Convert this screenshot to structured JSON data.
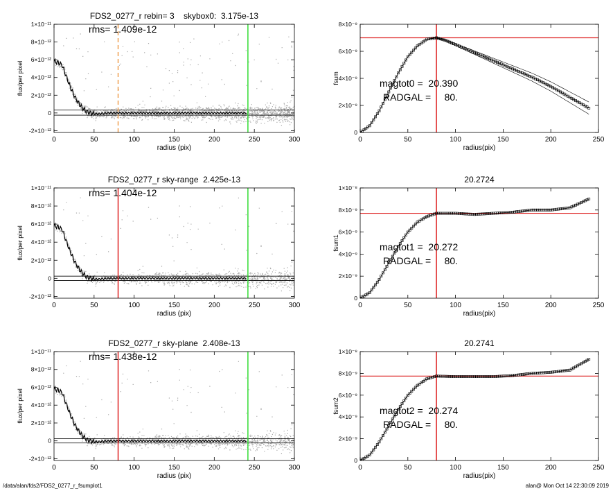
{
  "footer": {
    "left": "/data/alan/fds2/FDS2_0277_r_fsumplot1",
    "right": "alan@  Mon Oct 14 22:30:09 2019"
  },
  "colors": {
    "scatter": "#a8a8a8",
    "profile": "#000000",
    "marker_red": "#dd1f1f",
    "marker_orange": "#f0a050",
    "marker_green": "#33dd33"
  },
  "chart_data": [
    {
      "type": "scatter",
      "title": "FDS2_0277_r rebin= 3    skybox0:  3.175e-13",
      "annotation": "rms= 1.409e-12",
      "xlabel": "radius (pix)",
      "ylabel": "flux/per pixel",
      "xlim": [
        0,
        300
      ],
      "ylim": [
        -2.2e-12,
        1e-11
      ],
      "xticks": [
        0,
        50,
        100,
        150,
        200,
        250,
        300
      ],
      "xtick_labels": [
        "0",
        "50",
        "100",
        "150",
        "200",
        "250",
        "300"
      ],
      "yticks": [
        -2e-12,
        0,
        2e-12,
        4e-12,
        6e-12,
        8e-12,
        1e-11
      ],
      "ytick_labels": [
        "-2×10⁻¹²",
        "0",
        "2×10⁻¹²",
        "4×10⁻¹²",
        "6×10⁻¹²",
        "8×10⁻¹²",
        "1×10⁻¹¹"
      ],
      "hlines": [
        3.2e-13,
        -2.5e-13
      ],
      "vlines": [
        {
          "x": 80,
          "color": "orange",
          "dashed": true
        },
        {
          "x": 242,
          "color": "green"
        }
      ],
      "profile": {
        "x": [
          0,
          5,
          10,
          15,
          20,
          25,
          30,
          35,
          40,
          45,
          50,
          55,
          60,
          70,
          80,
          100,
          150,
          200,
          240
        ],
        "y": [
          5.8e-12,
          5.7e-12,
          5.4e-12,
          4.2e-12,
          3e-12,
          2e-12,
          1.2e-12,
          6e-13,
          2e-13,
          0,
          -1e-13,
          -1e-13,
          -5e-14,
          0,
          0,
          0,
          0,
          0,
          0
        ]
      }
    },
    {
      "type": "line",
      "title": "",
      "xlabel": "radius(pix)",
      "ylabel": "fsum",
      "annotations": [
        "magtot0 =  20.390",
        "RADGAL =     80."
      ],
      "xlim": [
        0,
        250
      ],
      "ylim": [
        0,
        8e-09
      ],
      "xticks": [
        0,
        50,
        100,
        150,
        200,
        250
      ],
      "xtick_labels": [
        "0",
        "50",
        "100",
        "150",
        "200",
        "250"
      ],
      "yticks": [
        0,
        2e-09,
        4e-09,
        6e-09,
        8e-09
      ],
      "ytick_labels": [
        "0",
        "2×10⁻⁹",
        "4×10⁻⁹",
        "6×10⁻⁹",
        "8×10⁻⁹"
      ],
      "hline": 7e-09,
      "vline": 80,
      "series": {
        "x": [
          0,
          10,
          20,
          30,
          40,
          50,
          60,
          70,
          80,
          90,
          100,
          120,
          140,
          160,
          180,
          200,
          220,
          240
        ],
        "y": [
          0,
          5e-10,
          1.6e-09,
          3e-09,
          4.4e-09,
          5.6e-09,
          6.4e-09,
          6.9e-09,
          7e-09,
          6.8e-09,
          6.5e-09,
          5.9e-09,
          5.3e-09,
          4.7e-09,
          4.1e-09,
          3.4e-09,
          2.6e-09,
          1.8e-09
        ]
      }
    },
    {
      "type": "scatter",
      "title": "FDS2_0277_r sky-range  2.425e-13",
      "annotation": "rms= 1.404e-12",
      "xlabel": "radius (pix)",
      "ylabel": "flux/per pixel",
      "xlim": [
        0,
        300
      ],
      "ylim": [
        -2.2e-12,
        1e-11
      ],
      "xticks": [
        0,
        50,
        100,
        150,
        200,
        250,
        300
      ],
      "xtick_labels": [
        "0",
        "50",
        "100",
        "150",
        "200",
        "250",
        "300"
      ],
      "yticks": [
        -2e-12,
        0,
        2e-12,
        4e-12,
        6e-12,
        8e-12,
        1e-11
      ],
      "ytick_labels": [
        "-2×10⁻¹²",
        "0",
        "2×10⁻¹²",
        "4×10⁻¹²",
        "6×10⁻¹²",
        "8×10⁻¹²",
        "1×10⁻¹¹"
      ],
      "hlines": [
        2.4e-13,
        -2.4e-13
      ],
      "vlines": [
        {
          "x": 80,
          "color": "red"
        },
        {
          "x": 242,
          "color": "green"
        }
      ],
      "profile": {
        "x": [
          0,
          5,
          10,
          15,
          20,
          25,
          30,
          35,
          40,
          45,
          50,
          55,
          60,
          70,
          80,
          100,
          150,
          200,
          240
        ],
        "y": [
          5.8e-12,
          5.7e-12,
          5.4e-12,
          4.2e-12,
          3e-12,
          2e-12,
          1.2e-12,
          6e-13,
          2e-13,
          0,
          -1e-13,
          -1e-13,
          -5e-14,
          0,
          0,
          0,
          0,
          0,
          0
        ]
      }
    },
    {
      "type": "line",
      "title": "20.2724",
      "xlabel": "radius(pix)",
      "ylabel": "fsum1",
      "annotations": [
        "magtot1 =  20.272",
        "RADGAL =     80."
      ],
      "xlim": [
        0,
        250
      ],
      "ylim": [
        0,
        1e-08
      ],
      "xticks": [
        0,
        50,
        100,
        150,
        200,
        250
      ],
      "xtick_labels": [
        "0",
        "50",
        "100",
        "150",
        "200",
        "250"
      ],
      "yticks": [
        0,
        2e-09,
        4e-09,
        6e-09,
        8e-09,
        1e-08
      ],
      "ytick_labels": [
        "0",
        "2×10⁻⁹",
        "4×10⁻⁹",
        "6×10⁻⁹",
        "8×10⁻⁹",
        "1×10⁻⁸"
      ],
      "hline": 7.7e-09,
      "vline": 80,
      "series": {
        "x": [
          0,
          10,
          20,
          30,
          40,
          50,
          60,
          70,
          80,
          100,
          120,
          140,
          160,
          180,
          200,
          220,
          230,
          240
        ],
        "y": [
          0,
          5e-10,
          1.7e-09,
          3.2e-09,
          4.7e-09,
          6e-09,
          6.9e-09,
          7.4e-09,
          7.7e-09,
          7.7e-09,
          7.6e-09,
          7.7e-09,
          7.8e-09,
          8e-09,
          8e-09,
          8.2e-09,
          8.6e-09,
          9e-09
        ]
      }
    },
    {
      "type": "scatter",
      "title": "FDS2_0277_r sky-plane  2.408e-13",
      "annotation": "rms= 1.438e-12",
      "xlabel": "radius (pix)",
      "ylabel": "flux/per pixel",
      "xlim": [
        0,
        300
      ],
      "ylim": [
        -2.2e-12,
        1e-11
      ],
      "xticks": [
        0,
        50,
        100,
        150,
        200,
        250,
        300
      ],
      "xtick_labels": [
        "0",
        "50",
        "100",
        "150",
        "200",
        "250",
        "300"
      ],
      "yticks": [
        -2e-12,
        0,
        2e-12,
        4e-12,
        6e-12,
        8e-12,
        1e-11
      ],
      "ytick_labels": [
        "-2×10⁻¹²",
        "0",
        "2×10⁻¹²",
        "4×10⁻¹²",
        "6×10⁻¹²",
        "8×10⁻¹²",
        "1×10⁻¹¹"
      ],
      "hlines": [
        2.4e-13,
        -2.4e-13
      ],
      "vlines": [
        {
          "x": 80,
          "color": "red"
        },
        {
          "x": 242,
          "color": "green"
        }
      ],
      "profile": {
        "x": [
          0,
          5,
          10,
          15,
          20,
          25,
          30,
          35,
          40,
          45,
          50,
          55,
          60,
          70,
          80,
          100,
          150,
          200,
          240
        ],
        "y": [
          5.8e-12,
          5.7e-12,
          5.4e-12,
          4.2e-12,
          3e-12,
          2e-12,
          1.2e-12,
          6e-13,
          2e-13,
          0,
          -1e-13,
          -1e-13,
          -5e-14,
          0,
          0,
          0,
          0,
          0,
          0
        ]
      }
    },
    {
      "type": "line",
      "title": "20.2741",
      "xlabel": "radius(pix)",
      "ylabel": "fsum2",
      "annotations": [
        "magtot2 =  20.274",
        "RADGAL =     80."
      ],
      "xlim": [
        0,
        250
      ],
      "ylim": [
        0,
        1e-08
      ],
      "xticks": [
        0,
        50,
        100,
        150,
        200,
        250
      ],
      "xtick_labels": [
        "0",
        "50",
        "100",
        "150",
        "200",
        "250"
      ],
      "yticks": [
        0,
        2e-09,
        4e-09,
        6e-09,
        8e-09,
        1e-08
      ],
      "ytick_labels": [
        "0",
        "2×10⁻⁹",
        "4×10⁻⁹",
        "6×10⁻⁹",
        "8×10⁻⁹",
        "1×10⁻⁸"
      ],
      "hline": 7.75e-09,
      "vline": 80,
      "series": {
        "x": [
          0,
          10,
          20,
          30,
          40,
          50,
          60,
          70,
          80,
          100,
          120,
          140,
          160,
          180,
          200,
          220,
          230,
          240
        ],
        "y": [
          0,
          5e-10,
          1.7e-09,
          3.2e-09,
          4.7e-09,
          6e-09,
          6.9e-09,
          7.5e-09,
          7.75e-09,
          7.7e-09,
          7.7e-09,
          7.7e-09,
          7.8e-09,
          8e-09,
          8.1e-09,
          8.3e-09,
          8.8e-09,
          9.3e-09
        ]
      }
    }
  ]
}
